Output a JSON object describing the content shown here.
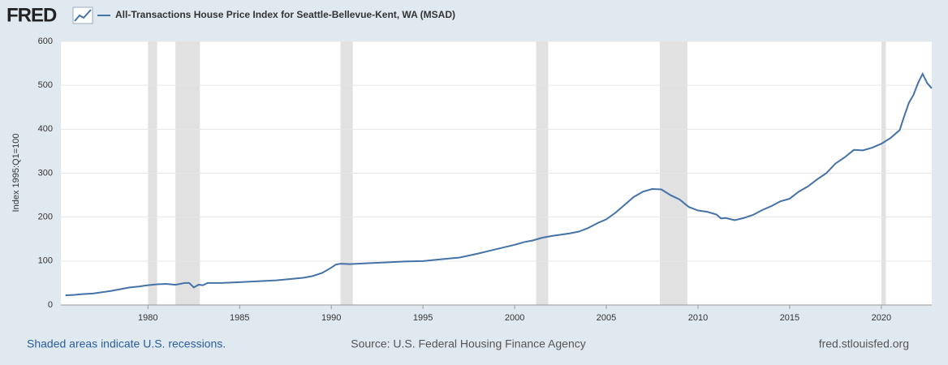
{
  "chart_data": {
    "type": "line",
    "logo": "FRED",
    "ylabel": "Index 1995:Q1=100",
    "recession_note": "Shaded areas indicate U.S. recessions.",
    "source": "Source: U.S. Federal Housing Finance Agency",
    "site": "fred.stlouisfed.org",
    "x": [
      1975.5,
      1976,
      1976.5,
      1977,
      1977.5,
      1978,
      1978.5,
      1979,
      1979.5,
      1980,
      1980.5,
      1981,
      1981.5,
      1982,
      1982.25,
      1982.5,
      1982.75,
      1983,
      1983.25,
      1984,
      1985,
      1986,
      1987,
      1988,
      1988.5,
      1989,
      1989.5,
      1990,
      1990.25,
      1990.5,
      1991,
      1992,
      1993,
      1994,
      1995,
      1996,
      1997,
      1998,
      1999,
      2000,
      2000.5,
      2001,
      2001.5,
      2002,
      2003,
      2003.5,
      2004,
      2004.5,
      2005,
      2005.5,
      2006,
      2006.5,
      2007,
      2007.5,
      2008,
      2008.5,
      2009,
      2009.5,
      2010,
      2010.5,
      2011,
      2011.25,
      2011.5,
      2012,
      2012.5,
      2013,
      2013.5,
      2014,
      2014.5,
      2015,
      2015.5,
      2016,
      2016.5,
      2017,
      2017.5,
      2018,
      2018.5,
      2019,
      2019.5,
      2020,
      2020.5,
      2021,
      2021.25,
      2021.5,
      2021.75,
      2022,
      2022.25,
      2022.5,
      2022.75
    ],
    "series": [
      {
        "name": "All-Transactions House Price Index for Seattle-Bellevue-Kent, WA (MSAD)",
        "color": "#4572a7",
        "values": [
          22,
          23,
          25,
          26,
          29,
          32,
          36,
          40,
          42,
          45,
          47,
          48,
          46,
          50,
          50,
          40,
          46,
          45,
          50,
          50,
          52,
          54,
          56,
          60,
          62,
          66,
          73,
          85,
          92,
          94,
          93,
          95,
          97,
          99,
          100,
          104,
          108,
          117,
          127,
          137,
          143,
          147,
          153,
          157,
          163,
          167,
          175,
          186,
          195,
          210,
          228,
          246,
          258,
          264,
          263,
          250,
          240,
          223,
          215,
          212,
          206,
          197,
          198,
          193,
          198,
          205,
          216,
          225,
          236,
          242,
          258,
          270,
          286,
          300,
          322,
          336,
          353,
          352,
          358,
          367,
          380,
          398,
          430,
          460,
          478,
          505,
          526,
          505,
          493
        ]
      }
    ],
    "recessions": [
      [
        1980.0,
        1980.5
      ],
      [
        1981.5,
        1982.83
      ],
      [
        1990.5,
        1991.17
      ],
      [
        2001.17,
        2001.83
      ],
      [
        2007.92,
        2009.42
      ],
      [
        2020.0,
        2020.25
      ]
    ],
    "recession_color": "#e1e1e1",
    "xlim": [
      1975.25,
      2022.75
    ],
    "xticks": [
      1980,
      1985,
      1990,
      1995,
      2000,
      2005,
      2010,
      2015,
      2020
    ],
    "ylim": [
      0,
      600
    ],
    "yticks": [
      0,
      100,
      200,
      300,
      400,
      500,
      600
    ],
    "grid": true
  }
}
